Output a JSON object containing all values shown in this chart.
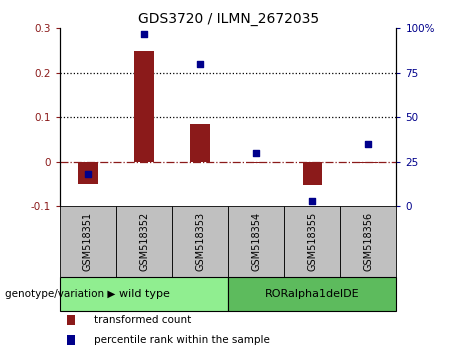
{
  "title": "GDS3720 / ILMN_2672035",
  "samples": [
    "GSM518351",
    "GSM518352",
    "GSM518353",
    "GSM518354",
    "GSM518355",
    "GSM518356"
  ],
  "transformed_count": [
    -0.05,
    0.25,
    0.085,
    -0.002,
    -0.052,
    -0.002
  ],
  "percentile_rank": [
    18,
    97,
    80,
    30,
    3,
    35
  ],
  "ylim_left": [
    -0.1,
    0.3
  ],
  "ylim_right": [
    0,
    100
  ],
  "yticks_left": [
    -0.1,
    0.0,
    0.1,
    0.2,
    0.3
  ],
  "ytick_labels_left": [
    "-0.1",
    "0",
    "0.1",
    "0.2",
    "0.3"
  ],
  "yticks_right": [
    0,
    25,
    50,
    75,
    100
  ],
  "ytick_labels_right": [
    "0",
    "25",
    "50",
    "75",
    "100%"
  ],
  "bar_color": "#8B1A1A",
  "scatter_color": "#00008B",
  "zero_line_color": "#8B1A1A",
  "hline_values": [
    0.1,
    0.2
  ],
  "group1_label": "wild type",
  "group2_label": "RORalpha1delDE",
  "group1_count": 3,
  "group2_count": 3,
  "group_color1": "#90EE90",
  "group_color2": "#5DBB5D",
  "sample_bg_color": "#C0C0C0",
  "legend_text1": "transformed count",
  "legend_text2": "percentile rank within the sample",
  "genotype_label": "genotype/variation",
  "bar_width": 0.35,
  "title_fontsize": 10,
  "tick_fontsize": 7.5,
  "label_fontsize": 7.5
}
